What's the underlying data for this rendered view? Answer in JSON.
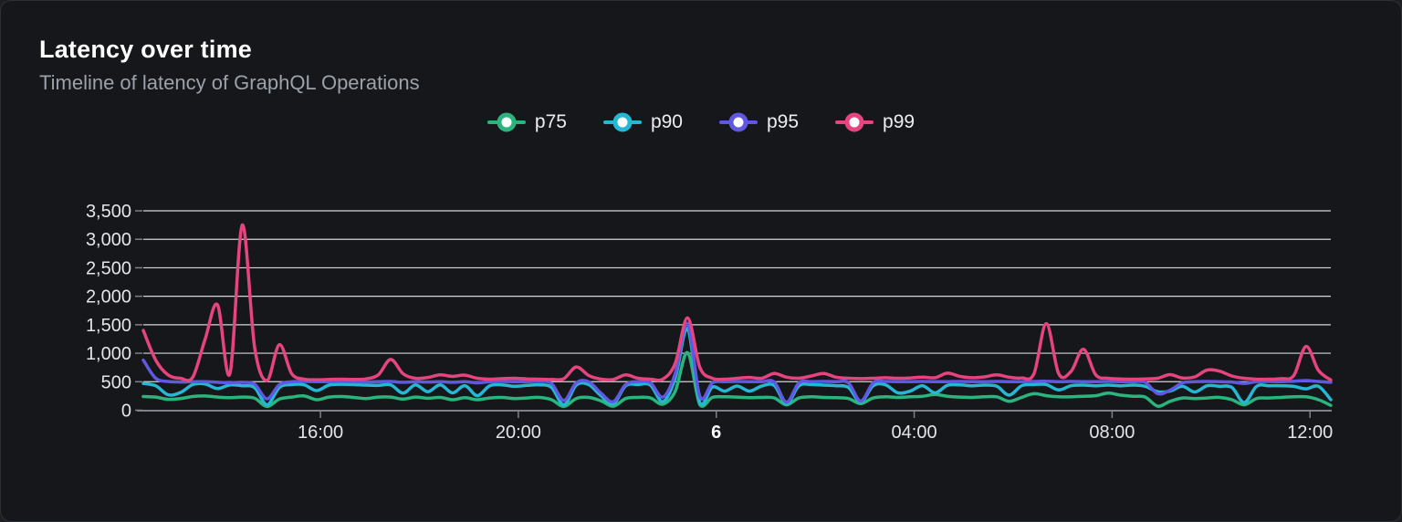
{
  "header": {
    "title": "Latency over time",
    "subtitle": "Timeline of latency of GraphQL Operations"
  },
  "colors": {
    "panel_background": "#15171b",
    "panel_border": "#2c2f35",
    "gridline": "rgba(255,255,255,0.82)",
    "axis": "#7e8187",
    "tick_text": "#e3e5e9",
    "subtitle_text": "#9ca1aa"
  },
  "chart_data": {
    "type": "line",
    "title": "Latency over time",
    "subtitle": "Timeline of latency of GraphQL Operations",
    "xlabel": "",
    "ylabel": "",
    "grid": true,
    "legend_position": "top-center",
    "x_axis": {
      "unit": "hours",
      "span_hours": 24,
      "step_hours": 0.25,
      "ticks": [
        {
          "t": 3.58,
          "label": "16:00",
          "bold": false
        },
        {
          "t": 7.58,
          "label": "20:00",
          "bold": false
        },
        {
          "t": 11.58,
          "label": "6",
          "bold": true
        },
        {
          "t": 15.58,
          "label": "04:00",
          "bold": false
        },
        {
          "t": 19.58,
          "label": "08:00",
          "bold": false
        },
        {
          "t": 23.58,
          "label": "12:00",
          "bold": false
        }
      ]
    },
    "y_axis": {
      "min": 0,
      "max": 3500,
      "ticks": [
        {
          "value": 0,
          "label": "0"
        },
        {
          "value": 500,
          "label": "500"
        },
        {
          "value": 1000,
          "label": "1,000"
        },
        {
          "value": 1500,
          "label": "1,500"
        },
        {
          "value": 2000,
          "label": "2,000"
        },
        {
          "value": 2500,
          "label": "2,500"
        },
        {
          "value": 3000,
          "label": "3,000"
        },
        {
          "value": 3500,
          "label": "3,500"
        }
      ]
    },
    "series": [
      {
        "name": "p75",
        "color": "#2bb47e",
        "values": [
          240,
          230,
          190,
          205,
          240,
          250,
          230,
          220,
          230,
          210,
          65,
          195,
          230,
          250,
          185,
          230,
          240,
          225,
          205,
          230,
          230,
          195,
          230,
          210,
          225,
          185,
          220,
          185,
          215,
          225,
          205,
          215,
          225,
          185,
          65,
          205,
          225,
          165,
          70,
          205,
          225,
          215,
          105,
          330,
          1010,
          95,
          225,
          235,
          230,
          220,
          225,
          215,
          95,
          215,
          235,
          225,
          220,
          205,
          115,
          215,
          235,
          225,
          235,
          245,
          275,
          245,
          230,
          225,
          235,
          235,
          155,
          225,
          290,
          255,
          235,
          235,
          245,
          255,
          300,
          265,
          245,
          230,
          70,
          155,
          215,
          205,
          215,
          225,
          185,
          95,
          205,
          215,
          225,
          235,
          235,
          185,
          85
        ]
      },
      {
        "name": "p90",
        "color": "#25b8d4",
        "values": [
          470,
          430,
          270,
          310,
          450,
          460,
          380,
          445,
          430,
          395,
          95,
          400,
          450,
          445,
          345,
          440,
          455,
          450,
          440,
          435,
          445,
          300,
          445,
          325,
          445,
          305,
          430,
          255,
          430,
          445,
          420,
          435,
          445,
          400,
          95,
          440,
          450,
          255,
          115,
          430,
          450,
          440,
          150,
          560,
          1430,
          130,
          405,
          335,
          425,
          335,
          425,
          435,
          115,
          430,
          450,
          440,
          430,
          400,
          145,
          430,
          445,
          305,
          335,
          430,
          305,
          435,
          445,
          430,
          440,
          420,
          265,
          430,
          450,
          450,
          355,
          430,
          440,
          430,
          440,
          430,
          440,
          420,
          325,
          335,
          420,
          320,
          430,
          420,
          400,
          135,
          420,
          430,
          430,
          420,
          375,
          420,
          185
        ]
      },
      {
        "name": "p95",
        "color": "#6058e0",
        "values": [
          880,
          560,
          505,
          495,
          500,
          500,
          490,
          480,
          490,
          455,
          200,
          450,
          500,
          505,
          500,
          500,
          505,
          500,
          495,
          500,
          505,
          490,
          500,
          495,
          500,
          490,
          500,
          480,
          500,
          505,
          500,
          500,
          505,
          470,
          170,
          480,
          500,
          300,
          150,
          450,
          500,
          480,
          230,
          640,
          1520,
          240,
          480,
          500,
          505,
          500,
          500,
          495,
          140,
          480,
          500,
          505,
          500,
          480,
          160,
          480,
          505,
          500,
          500,
          505,
          500,
          500,
          505,
          500,
          500,
          505,
          500,
          500,
          505,
          510,
          500,
          505,
          500,
          500,
          505,
          500,
          500,
          490,
          290,
          350,
          480,
          500,
          505,
          500,
          495,
          470,
          500,
          505,
          500,
          510,
          520,
          505,
          490
        ]
      },
      {
        "name": "p99",
        "color": "#e5447f",
        "values": [
          1400,
          880,
          620,
          560,
          580,
          1250,
          1850,
          640,
          3250,
          1100,
          520,
          1150,
          640,
          545,
          535,
          540,
          545,
          540,
          550,
          620,
          890,
          640,
          560,
          575,
          620,
          595,
          615,
          560,
          545,
          555,
          560,
          550,
          545,
          540,
          555,
          760,
          610,
          545,
          540,
          620,
          560,
          545,
          545,
          820,
          1620,
          750,
          560,
          545,
          560,
          575,
          560,
          645,
          580,
          560,
          600,
          645,
          580,
          560,
          555,
          560,
          570,
          560,
          565,
          580,
          570,
          650,
          595,
          570,
          585,
          620,
          580,
          565,
          640,
          1520,
          640,
          680,
          1070,
          620,
          560,
          550,
          545,
          550,
          560,
          625,
          565,
          585,
          705,
          685,
          600,
          560,
          545,
          545,
          555,
          605,
          1120,
          700,
          530
        ]
      }
    ]
  }
}
